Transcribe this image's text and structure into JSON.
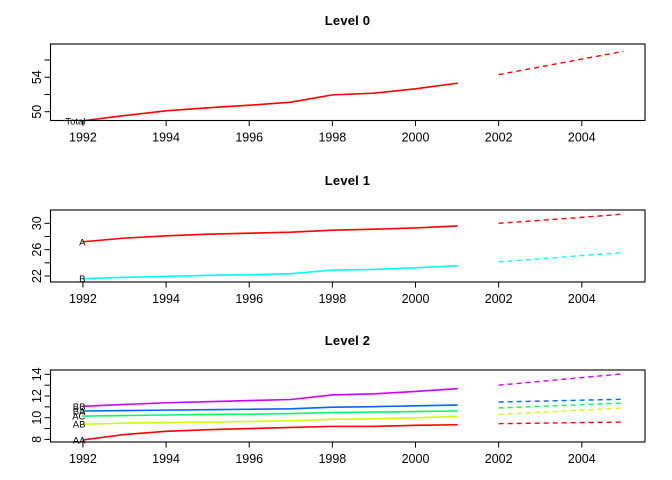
{
  "figure_background": "#FFFFFF",
  "axis_color": "#000000",
  "chart_data": [
    {
      "type": "line",
      "title": "Level 0",
      "xlabel": "",
      "ylabel": "",
      "grid": false,
      "legend": "inline-series-labels",
      "xlim": [
        1991.22,
        2005.52
      ],
      "ylim": [
        48.98,
        57.85
      ],
      "xticks": [
        1992,
        1994,
        1996,
        1998,
        2000,
        2002,
        2004
      ],
      "yticks": [
        50,
        52,
        54,
        56
      ],
      "ytick_labels": [
        "50",
        "",
        "54",
        ""
      ],
      "series": [
        {
          "name": "Total",
          "label": "Total",
          "color": "#FF0000",
          "history_style": "solid",
          "forecast_style": "dashed",
          "x_history": [
            1992,
            1993,
            1994,
            1995,
            1996,
            1997,
            1998,
            1999,
            2000,
            2001
          ],
          "history": [
            48.95,
            49.55,
            50.1,
            50.45,
            50.75,
            51.1,
            51.95,
            52.15,
            52.65,
            53.3
          ],
          "x_forecast": [
            2002,
            2003,
            2004,
            2005
          ],
          "forecast": [
            54.3,
            55.2,
            56.1,
            57.0
          ]
        }
      ]
    },
    {
      "type": "line",
      "title": "Level 1",
      "xlabel": "",
      "ylabel": "",
      "grid": false,
      "legend": "inline-series-labels",
      "xlim": [
        1991.22,
        2005.52
      ],
      "ylim": [
        21.09,
        32.02
      ],
      "xticks": [
        1992,
        1994,
        1996,
        1998,
        2000,
        2002,
        2004
      ],
      "yticks": [
        22,
        24,
        26,
        28,
        30
      ],
      "ytick_labels": [
        "22",
        "",
        "26",
        "",
        "30"
      ],
      "series": [
        {
          "name": "A",
          "label": "A",
          "color": "#FF0000",
          "history_style": "solid",
          "forecast_style": "dashed",
          "x_history": [
            1992,
            1993,
            1994,
            1995,
            1996,
            1997,
            1998,
            1999,
            2000,
            2001
          ],
          "history": [
            27.2,
            27.75,
            28.1,
            28.35,
            28.5,
            28.65,
            28.95,
            29.1,
            29.3,
            29.6
          ],
          "x_forecast": [
            2002,
            2003,
            2004,
            2005
          ],
          "forecast": [
            30.0,
            30.45,
            30.9,
            31.4
          ]
        },
        {
          "name": "B",
          "label": "B",
          "color": "#00FFFF",
          "history_style": "solid",
          "forecast_style": "dashed",
          "x_history": [
            1992,
            1993,
            1994,
            1995,
            1996,
            1997,
            1998,
            1999,
            2000,
            2001
          ],
          "history": [
            21.6,
            21.8,
            21.95,
            22.1,
            22.2,
            22.35,
            22.9,
            23.0,
            23.25,
            23.55
          ],
          "x_forecast": [
            2002,
            2003,
            2004,
            2005
          ],
          "forecast": [
            24.15,
            24.6,
            25.1,
            25.55
          ]
        }
      ]
    },
    {
      "type": "line",
      "title": "Level 2",
      "xlabel": "",
      "ylabel": "",
      "grid": false,
      "legend": "inline-series-labels",
      "xlim": [
        1991.22,
        2005.52
      ],
      "ylim": [
        7.76,
        14.4
      ],
      "xticks": [
        1992,
        1994,
        1996,
        1998,
        2000,
        2002,
        2004
      ],
      "yticks": [
        8,
        9,
        10,
        11,
        12,
        13,
        14
      ],
      "ytick_labels": [
        "8",
        "",
        "10",
        "",
        "12",
        "",
        "14"
      ],
      "series": [
        {
          "name": "AA",
          "label": "AA",
          "color": "#FF0000",
          "history_style": "solid",
          "forecast_style": "dashed",
          "x_history": [
            1992,
            1993,
            1994,
            1995,
            1996,
            1997,
            1998,
            1999,
            2000,
            2001
          ],
          "history": [
            7.95,
            8.45,
            8.75,
            8.9,
            9.0,
            9.1,
            9.2,
            9.2,
            9.3,
            9.35
          ],
          "x_forecast": [
            2002,
            2003,
            2004,
            2005
          ],
          "forecast": [
            9.45,
            9.5,
            9.55,
            9.6
          ]
        },
        {
          "name": "AB",
          "label": "AB",
          "color": "#CCFF00",
          "history_style": "solid",
          "forecast_style": "dashed",
          "x_history": [
            1992,
            1993,
            1994,
            1995,
            1996,
            1997,
            1998,
            1999,
            2000,
            2001
          ],
          "history": [
            9.4,
            9.5,
            9.55,
            9.6,
            9.65,
            9.72,
            9.85,
            9.9,
            10.0,
            10.1
          ],
          "x_forecast": [
            2002,
            2003,
            2004,
            2005
          ],
          "forecast": [
            10.3,
            10.5,
            10.7,
            10.9
          ]
        },
        {
          "name": "AC",
          "label": "AC",
          "color": "#00FF66",
          "history_style": "solid",
          "forecast_style": "dashed",
          "x_history": [
            1992,
            1993,
            1994,
            1995,
            1996,
            1997,
            1998,
            1999,
            2000,
            2001
          ],
          "history": [
            10.15,
            10.2,
            10.25,
            10.3,
            10.33,
            10.38,
            10.48,
            10.52,
            10.57,
            10.62
          ],
          "x_forecast": [
            2002,
            2003,
            2004,
            2005
          ],
          "forecast": [
            10.9,
            11.05,
            11.2,
            11.35
          ]
        },
        {
          "name": "BA",
          "label": "BA",
          "color": "#0066FF",
          "history_style": "solid",
          "forecast_style": "dashed",
          "x_history": [
            1992,
            1993,
            1994,
            1995,
            1996,
            1997,
            1998,
            1999,
            2000,
            2001
          ],
          "history": [
            10.62,
            10.66,
            10.7,
            10.74,
            10.78,
            10.82,
            10.97,
            11.02,
            11.1,
            11.17
          ],
          "x_forecast": [
            2002,
            2003,
            2004,
            2005
          ],
          "forecast": [
            11.45,
            11.53,
            11.62,
            11.7
          ]
        },
        {
          "name": "BB",
          "label": "BB",
          "color": "#CC00FF",
          "history_style": "solid",
          "forecast_style": "dashed",
          "x_history": [
            1992,
            1993,
            1994,
            1995,
            1996,
            1997,
            1998,
            1999,
            2000,
            2001
          ],
          "history": [
            11.05,
            11.22,
            11.38,
            11.48,
            11.58,
            11.68,
            12.1,
            12.2,
            12.42,
            12.68
          ],
          "x_forecast": [
            2002,
            2003,
            2004,
            2005
          ],
          "forecast": [
            13.0,
            13.35,
            13.7,
            14.05
          ]
        }
      ]
    }
  ]
}
